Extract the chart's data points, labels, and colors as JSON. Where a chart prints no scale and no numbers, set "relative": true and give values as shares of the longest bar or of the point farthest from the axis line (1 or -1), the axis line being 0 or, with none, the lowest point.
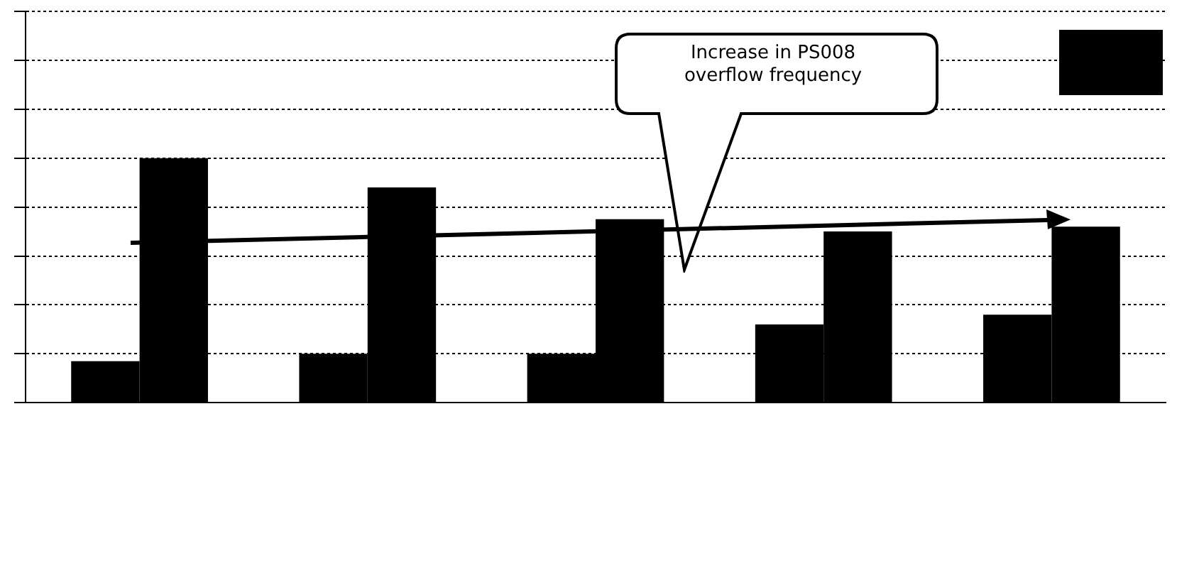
{
  "chart_data": {
    "type": "bar",
    "relative": true,
    "categories": [
      null,
      null,
      null,
      null,
      null
    ],
    "series": [
      {
        "color": "#000000",
        "values": [
          0.17,
          0.2,
          0.2,
          0.32,
          0.36
        ]
      },
      {
        "color": "#000000",
        "values": [
          1,
          0.88,
          0.75,
          0.7,
          0.72
        ]
      }
    ],
    "annotations": [
      "Increase in PS008 overflow frequency"
    ],
    "grid": "y",
    "legend": false
  }
}
